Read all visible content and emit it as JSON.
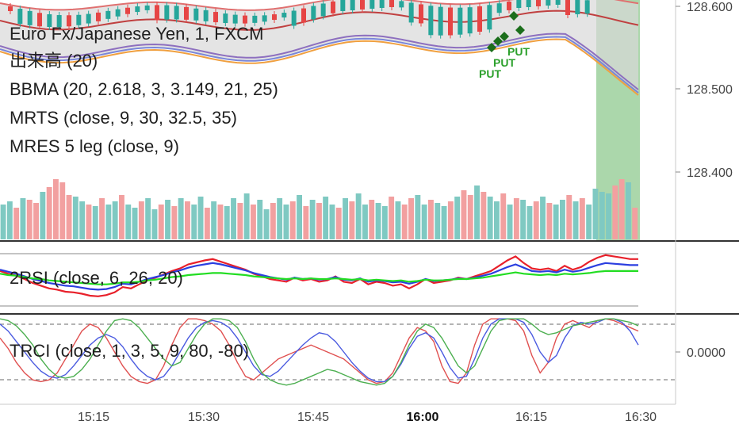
{
  "chart_data": [
    {
      "type": "candlestick",
      "panel": "price",
      "labels": [
        "Euro Fx/Japanese Yen, 1, FXCM",
        "出来高 (20)",
        "BBMA (20, 2.618, 3, 3.149, 21, 25)",
        "MRTS (close, 9, 30, 32.5, 35)",
        "MRES 5 leg (close, 9)"
      ],
      "y_ticks": [
        "128.600",
        "128.500",
        "128.400"
      ],
      "y_tick_values": [
        128.6,
        128.5,
        128.4
      ],
      "ylim": [
        128.28,
        128.61
      ],
      "volume": [
        22,
        24,
        20,
        26,
        25,
        23,
        30,
        33,
        38,
        36,
        28,
        27,
        24,
        22,
        21,
        26,
        22,
        24,
        28,
        22,
        20,
        24,
        26,
        19,
        22,
        25,
        21,
        26,
        24,
        22,
        27,
        20,
        24,
        22,
        21,
        26,
        23,
        29,
        22,
        25,
        19,
        23,
        26,
        22,
        24,
        28,
        21,
        25,
        23,
        27,
        22,
        20,
        26,
        24,
        29,
        22,
        25,
        23,
        21,
        27,
        24,
        22,
        26,
        28,
        22,
        25,
        23,
        21,
        24,
        27,
        31,
        28,
        34,
        30,
        27,
        24,
        29,
        22,
        26,
        25,
        21,
        24,
        27,
        23,
        22,
        25,
        28,
        24,
        26,
        22,
        32,
        30,
        29,
        34,
        38,
        36,
        20
      ],
      "volume_up": [
        1,
        1,
        0,
        1,
        0,
        0,
        1,
        0,
        0,
        0,
        0,
        1,
        1,
        0,
        1,
        0,
        1,
        1,
        0,
        1,
        1,
        0,
        1,
        1,
        0,
        1,
        0,
        1,
        0,
        1,
        1,
        0,
        1,
        0,
        1,
        1,
        0,
        1,
        0,
        1,
        1,
        0,
        1,
        1,
        0,
        1,
        0,
        1,
        0,
        1,
        1,
        0,
        1,
        0,
        1,
        1,
        0,
        1,
        1,
        0,
        1,
        0,
        0,
        1,
        1,
        0,
        1,
        1,
        0,
        1,
        0,
        0,
        1,
        0,
        1,
        1,
        0,
        1,
        0,
        1,
        1,
        0,
        1,
        0,
        1,
        1,
        0,
        1,
        0,
        1,
        1,
        1,
        1,
        0,
        0,
        1,
        0
      ],
      "signals": [
        "PUT",
        "PUT",
        "PUT"
      ],
      "highlight_region_color": "#8fc98f"
    },
    {
      "type": "line",
      "panel": "2RSI",
      "label": "2RSI (close, 6, 26, 20)",
      "series": [
        {
          "color": "#e8202a",
          "values": [
            62,
            58,
            55,
            50,
            44,
            40,
            36,
            34,
            31,
            30,
            28,
            25,
            24,
            26,
            30,
            38,
            36,
            42,
            48,
            52,
            57,
            62,
            66,
            72,
            75,
            78,
            80,
            76,
            72,
            68,
            64,
            58,
            54,
            50,
            48,
            46,
            52,
            48,
            50,
            46,
            48,
            54,
            46,
            44,
            50,
            42,
            46,
            44,
            40,
            42,
            36,
            42,
            50,
            44,
            46,
            48,
            52,
            50,
            54,
            58,
            62,
            70,
            78,
            84,
            74,
            66,
            64,
            66,
            62,
            70,
            64,
            68,
            76,
            82,
            86,
            84,
            82,
            80,
            80
          ]
        },
        {
          "color": "#2b3fe0",
          "values": [
            64,
            61,
            58,
            54,
            50,
            47,
            44,
            42,
            40,
            39,
            37,
            35,
            34,
            35,
            38,
            43,
            42,
            46,
            50,
            53,
            56,
            60,
            63,
            67,
            70,
            72,
            74,
            72,
            69,
            66,
            63,
            59,
            56,
            53,
            51,
            49,
            52,
            50,
            51,
            49,
            50,
            53,
            49,
            48,
            51,
            46,
            48,
            47,
            45,
            46,
            43,
            46,
            50,
            47,
            48,
            49,
            51,
            50,
            52,
            55,
            58,
            63,
            68,
            72,
            67,
            62,
            61,
            62,
            60,
            64,
            61,
            63,
            67,
            71,
            74,
            73,
            72,
            71,
            71
          ]
        },
        {
          "color": "#22dd22",
          "values": [
            58,
            56,
            55,
            53,
            51,
            50,
            48,
            47,
            46,
            45,
            44,
            43,
            42,
            42,
            43,
            45,
            45,
            46,
            48,
            49,
            51,
            53,
            54,
            56,
            57,
            58,
            59,
            59,
            58,
            57,
            56,
            54,
            53,
            52,
            51,
            50,
            51,
            50,
            51,
            50,
            50,
            51,
            50,
            49,
            50,
            48,
            49,
            48,
            47,
            48,
            46,
            47,
            49,
            48,
            48,
            49,
            50,
            50,
            51,
            52,
            54,
            56,
            58,
            60,
            58,
            57,
            56,
            57,
            56,
            58,
            57,
            58,
            59,
            61,
            62,
            62,
            62,
            62,
            62
          ]
        }
      ]
    },
    {
      "type": "line",
      "panel": "TRCI",
      "label": "TRCI (close, 1, 3, 5, 9, 80, -80)",
      "y_ticks": [
        "0.0000"
      ],
      "y_tick_values": [
        0
      ],
      "ylim": [
        -100,
        100
      ],
      "levels": [
        80,
        -80
      ],
      "series": [
        {
          "color": "#e05050",
          "values": [
            40,
            10,
            -30,
            -60,
            -80,
            -85,
            -80,
            -60,
            -20,
            20,
            60,
            80,
            70,
            40,
            0,
            -40,
            -70,
            -85,
            -90,
            -80,
            -40,
            20,
            70,
            95,
            95,
            90,
            80,
            60,
            20,
            -30,
            -70,
            -80,
            -60,
            -40,
            -20,
            -10,
            0,
            10,
            20,
            10,
            0,
            -10,
            -20,
            -40,
            -60,
            -80,
            -90,
            -85,
            -60,
            -10,
            40,
            70,
            60,
            30,
            -40,
            -85,
            -90,
            -60,
            20,
            80,
            95,
            95,
            95,
            90,
            60,
            -10,
            -60,
            -30,
            40,
            80,
            90,
            80,
            70,
            90,
            95,
            90,
            80,
            70,
            60
          ]
        },
        {
          "color": "#4a5ae0",
          "values": [
            80,
            60,
            30,
            0,
            -30,
            -55,
            -70,
            -75,
            -65,
            -40,
            -10,
            20,
            40,
            50,
            40,
            15,
            -20,
            -50,
            -70,
            -80,
            -70,
            -40,
            0,
            40,
            70,
            85,
            90,
            85,
            70,
            40,
            0,
            -40,
            -65,
            -70,
            -55,
            -30,
            -5,
            20,
            40,
            55,
            50,
            30,
            0,
            -30,
            -55,
            -75,
            -85,
            -85,
            -70,
            -35,
            10,
            45,
            55,
            40,
            0,
            -45,
            -75,
            -70,
            -20,
            40,
            80,
            95,
            95,
            95,
            85,
            50,
            0,
            -30,
            -10,
            40,
            75,
            85,
            80,
            85,
            95,
            95,
            85,
            60,
            20
          ]
        },
        {
          "color": "#4caf50",
          "values": [
            95,
            90,
            75,
            50,
            20,
            -20,
            -50,
            -70,
            -75,
            -70,
            -50,
            -20,
            20,
            60,
            90,
            95,
            90,
            70,
            40,
            10,
            -20,
            -40,
            -30,
            10,
            50,
            80,
            95,
            95,
            90,
            70,
            30,
            -20,
            -60,
            -80,
            -90,
            -95,
            -90,
            -80,
            -70,
            -60,
            -50,
            -55,
            -65,
            -75,
            -85,
            -90,
            -95,
            -90,
            -70,
            -30,
            20,
            60,
            80,
            70,
            40,
            0,
            -40,
            -60,
            -40,
            10,
            60,
            90,
            95,
            95,
            95,
            80,
            60,
            50,
            55,
            65,
            75,
            80,
            85,
            90,
            95,
            95,
            90,
            85,
            75
          ]
        }
      ]
    },
    {
      "type": "time_axis",
      "x_ticks": [
        "15:15",
        "15:30",
        "15:45",
        "16:00",
        "16:15",
        "16:30"
      ],
      "bold_tick": "16:00"
    }
  ]
}
